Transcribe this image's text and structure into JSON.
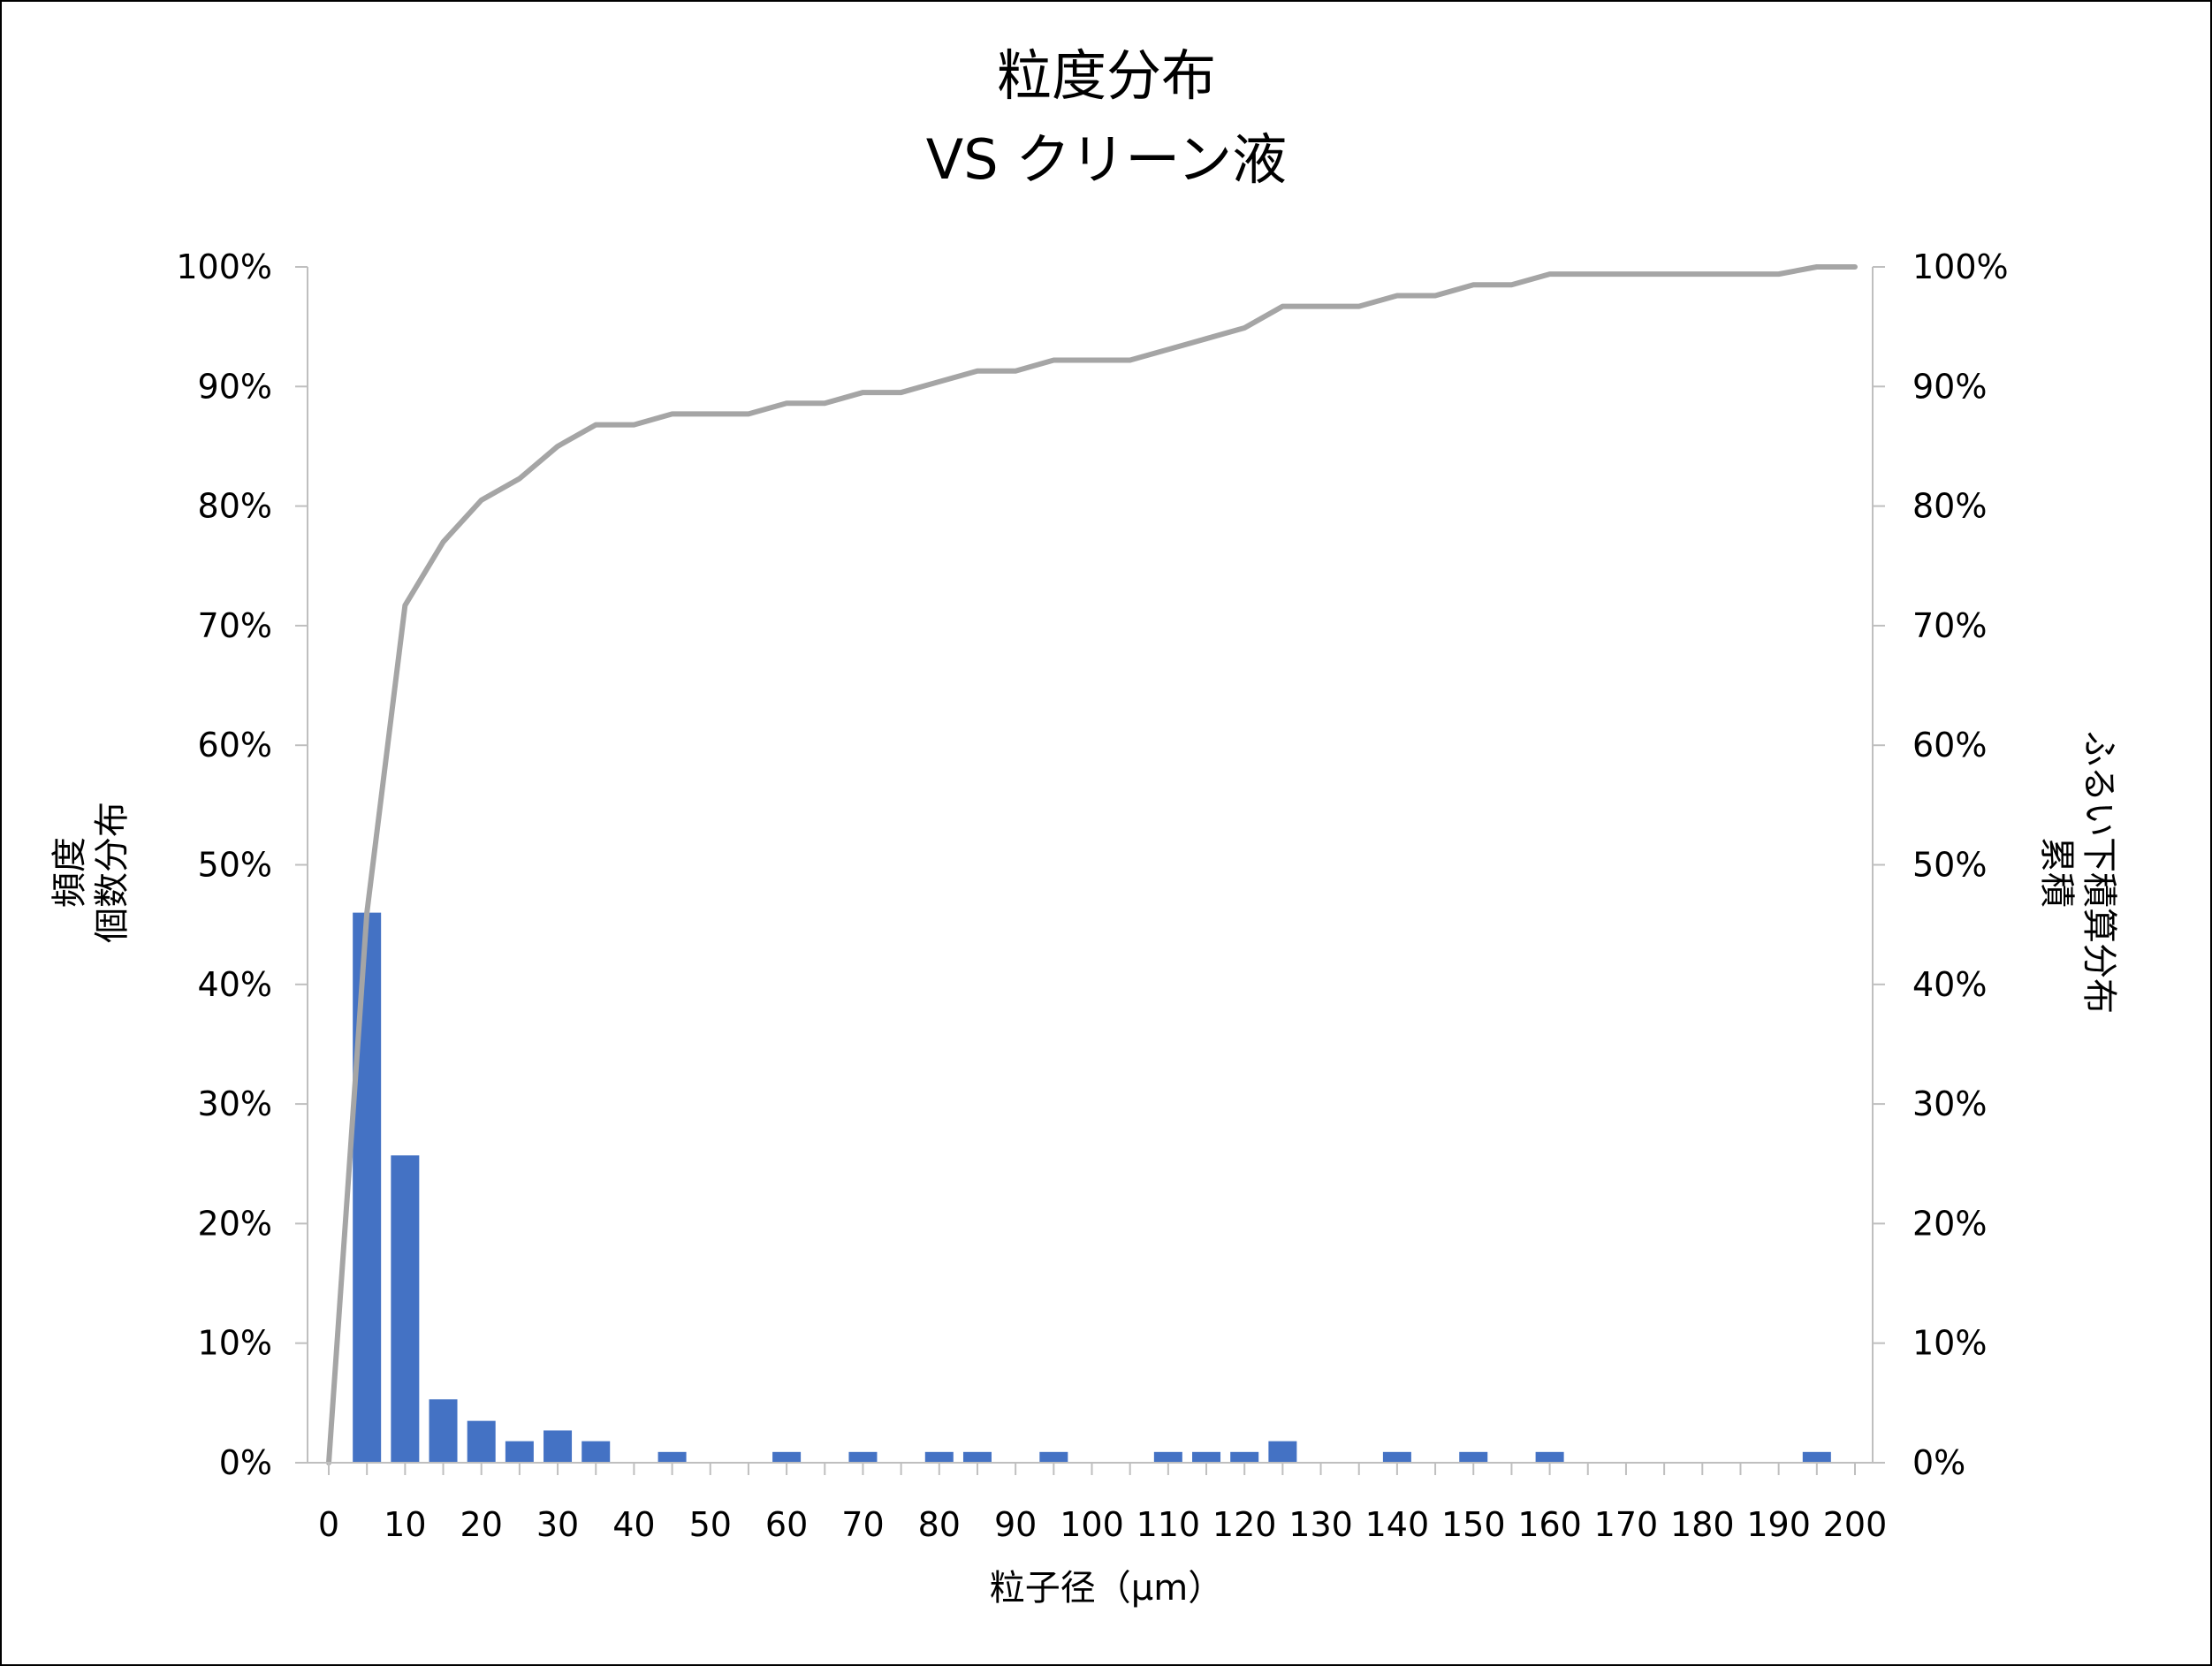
{
  "chart_data": {
    "type": "bar",
    "title": [
      "粒度分布",
      "VS クリーン液"
    ],
    "xlabel": "粒子径（μm）",
    "ylabel_left": [
      "頻度",
      "個数分布"
    ],
    "ylabel_right": [
      "ふるい下積算分布",
      "累積"
    ],
    "x_ticks": [
      0,
      10,
      20,
      30,
      40,
      50,
      60,
      70,
      80,
      90,
      100,
      110,
      120,
      130,
      140,
      150,
      160,
      170,
      180,
      190,
      200
    ],
    "x_range": [
      0,
      200
    ],
    "y_left_range": [
      0,
      100
    ],
    "y_right_range": [
      0,
      100
    ],
    "y_ticks": [
      "0%",
      "10%",
      "20%",
      "30%",
      "40%",
      "50%",
      "60%",
      "70%",
      "80%",
      "90%",
      "100%"
    ],
    "grid": false,
    "legend": "none",
    "colors": {
      "bars": "#4472c4",
      "line": "#a5a5a5",
      "axis": "#bfbfbf"
    },
    "series": [
      {
        "type": "bar",
        "axis": "left",
        "x": [
          5,
          10,
          15,
          20,
          25,
          30,
          35,
          45,
          60,
          70,
          80,
          85,
          95,
          110,
          115,
          120,
          125,
          140,
          150,
          160,
          195
        ],
        "values": [
          46.0,
          25.7,
          5.3,
          3.5,
          1.8,
          2.7,
          1.8,
          0.9,
          0.9,
          0.9,
          0.9,
          0.9,
          0.9,
          0.9,
          0.9,
          0.9,
          1.8,
          0.9,
          0.9,
          0.9,
          0.9
        ]
      },
      {
        "type": "line",
        "axis": "right",
        "x": [
          0,
          5,
          10,
          15,
          20,
          25,
          30,
          35,
          40,
          45,
          50,
          55,
          60,
          65,
          70,
          75,
          80,
          85,
          90,
          95,
          100,
          105,
          110,
          115,
          120,
          125,
          130,
          135,
          140,
          145,
          150,
          155,
          160,
          165,
          170,
          175,
          180,
          185,
          190,
          195,
          200
        ],
        "values": [
          0,
          46.0,
          71.7,
          77.0,
          80.5,
          82.3,
          85.0,
          86.8,
          86.8,
          87.7,
          87.7,
          87.7,
          88.6,
          88.6,
          89.5,
          89.5,
          90.4,
          91.3,
          91.3,
          92.2,
          92.2,
          92.2,
          93.1,
          94.0,
          94.9,
          96.7,
          96.7,
          96.7,
          97.6,
          97.6,
          98.5,
          98.5,
          99.4,
          99.4,
          99.4,
          99.4,
          99.4,
          99.4,
          99.4,
          100.0,
          100.0
        ]
      }
    ]
  }
}
